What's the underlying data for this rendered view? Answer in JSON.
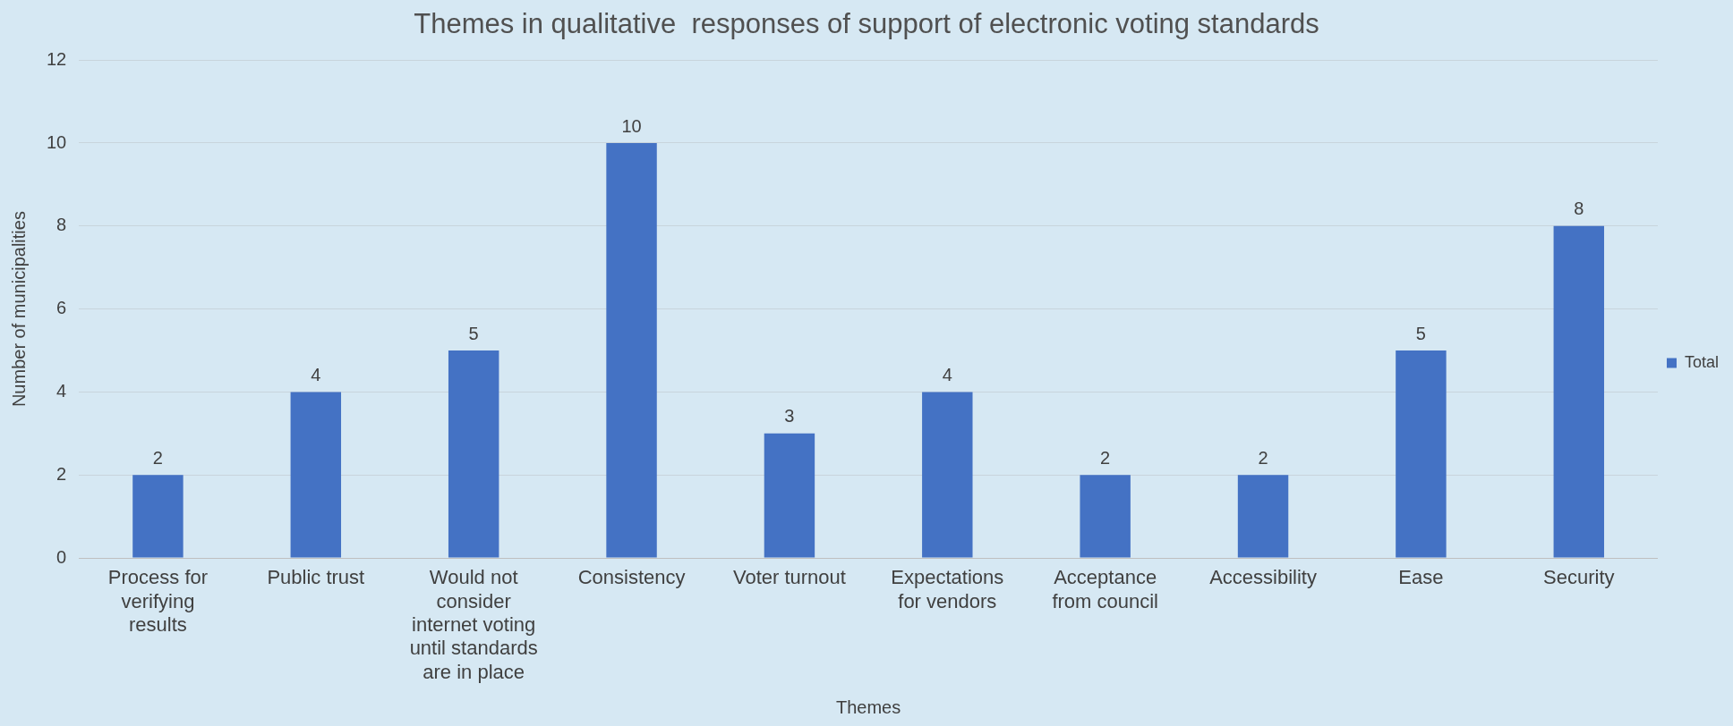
{
  "chart_data": {
    "type": "bar",
    "title": "Themes in qualitative  responses of support of electronic voting standards",
    "xlabel": "Themes",
    "ylabel": "Number of municipalities",
    "categories": [
      "Process for verifying results",
      "Public trust",
      "Would not consider internet voting until standards are in place",
      "Consistency",
      "Voter turnout",
      "Expectations for vendors",
      "Acceptance from council",
      "Accessibility",
      "Ease",
      "Security"
    ],
    "series": [
      {
        "name": "Total",
        "color": "#4472c4",
        "values": [
          2,
          4,
          5,
          10,
          3,
          4,
          2,
          2,
          5,
          8
        ]
      }
    ],
    "ylim": [
      0,
      12
    ],
    "yticks": [
      0,
      2,
      4,
      6,
      8,
      10,
      12
    ],
    "grid": "y",
    "legend": "right",
    "data_labels": true
  }
}
